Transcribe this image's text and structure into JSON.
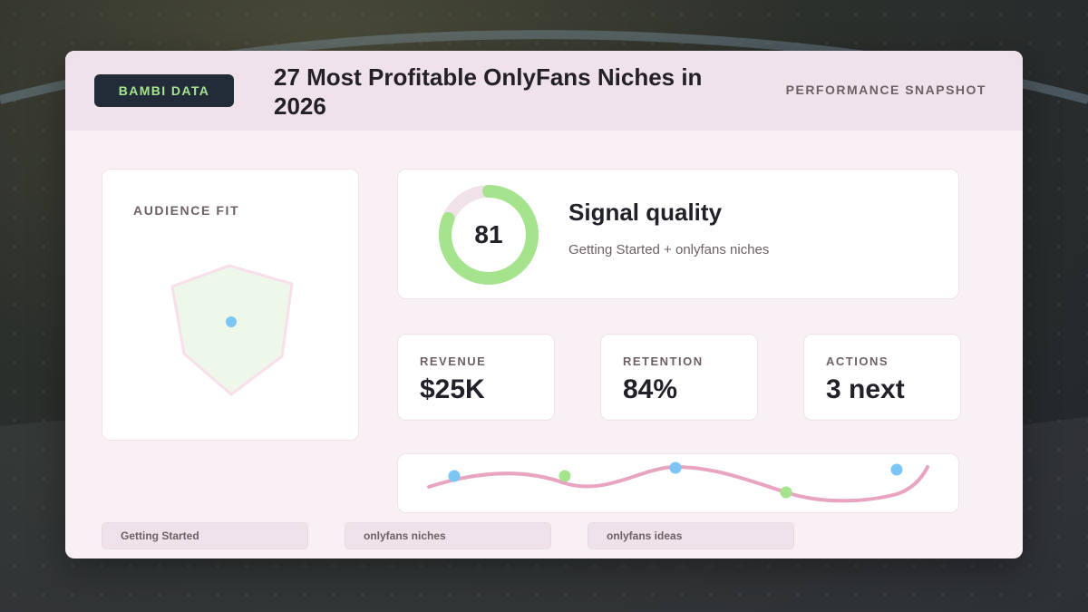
{
  "brand": "BAMBI DATA",
  "title": "27 Most Profitable OnlyFans Niches in 2026",
  "header_right": "PERFORMANCE SNAPSHOT",
  "audience": {
    "label": "AUDIENCE FIT"
  },
  "signal": {
    "score": "81",
    "score_fraction": 0.81,
    "title": "Signal quality",
    "subtitle": "Getting Started + onlyfans niches"
  },
  "stats": [
    {
      "label": "REVENUE",
      "value": "$25K"
    },
    {
      "label": "RETENTION",
      "value": "84%"
    },
    {
      "label": "ACTIONS",
      "value": "3 next"
    }
  ],
  "chips": [
    "Getting Started",
    "onlyfans niches",
    "onlyfans ideas"
  ],
  "colors": {
    "accent_green": "#a5e48d",
    "accent_blue": "#7cc6f6",
    "accent_pink": "#e8a4c0",
    "brand_bg": "#222b38"
  }
}
